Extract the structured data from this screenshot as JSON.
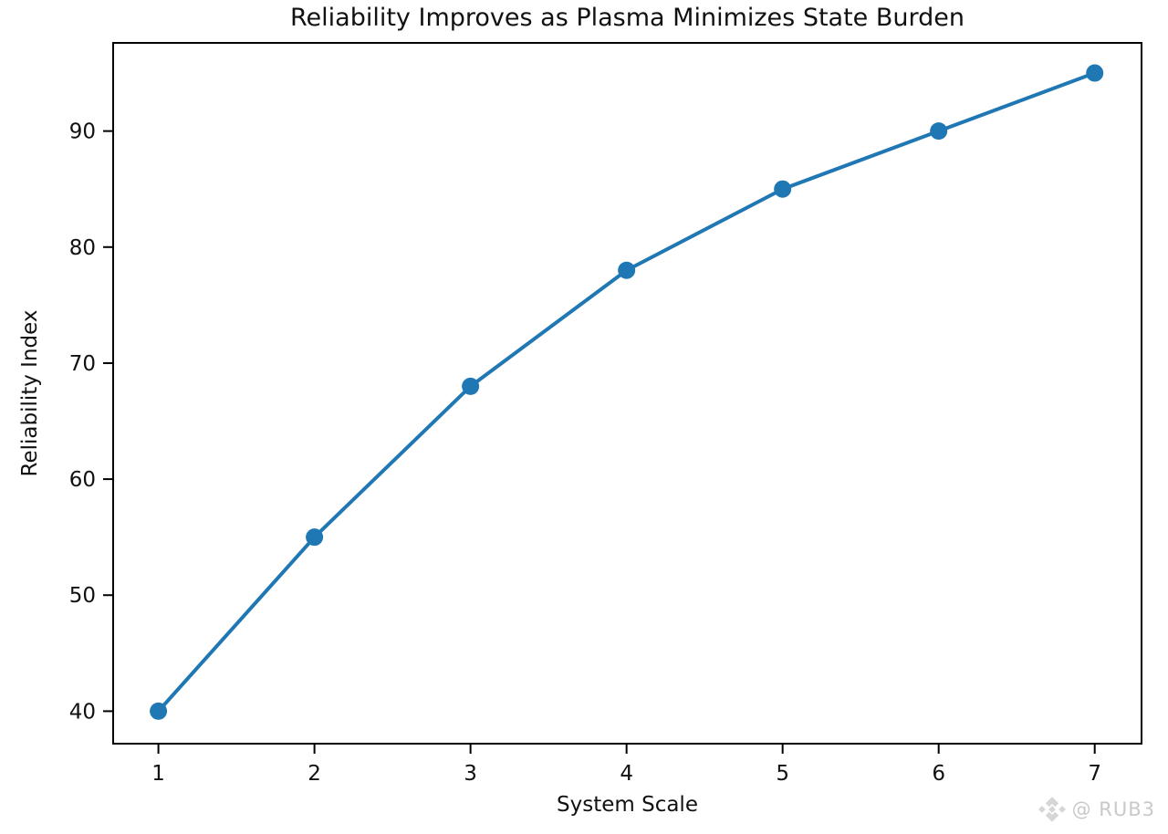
{
  "chart_data": {
    "type": "line",
    "title": "Reliability Improves as Plasma Minimizes State Burden",
    "xlabel": "System Scale",
    "ylabel": "Reliability Index",
    "x": [
      1,
      2,
      3,
      4,
      5,
      6,
      7
    ],
    "series": [
      {
        "name": "Reliability Index",
        "values": [
          40,
          55,
          68,
          78,
          85,
          90,
          95
        ]
      }
    ],
    "xticks": [
      1,
      2,
      3,
      4,
      5,
      6,
      7
    ],
    "yticks": [
      40,
      50,
      60,
      70,
      80,
      90
    ],
    "xlim": [
      0.71,
      7.3
    ],
    "ylim": [
      37.2,
      97.6
    ],
    "grid": false,
    "legend": null,
    "line_color": "#1f77b4",
    "marker": "circle",
    "marker_radius": 9.5,
    "line_width": 4,
    "axis_color": "#000000",
    "tick_font_size": 23
  },
  "watermark": {
    "icon": "gem-diamond-icon",
    "text": "@ RUB3",
    "color": "#cfcfcf"
  }
}
